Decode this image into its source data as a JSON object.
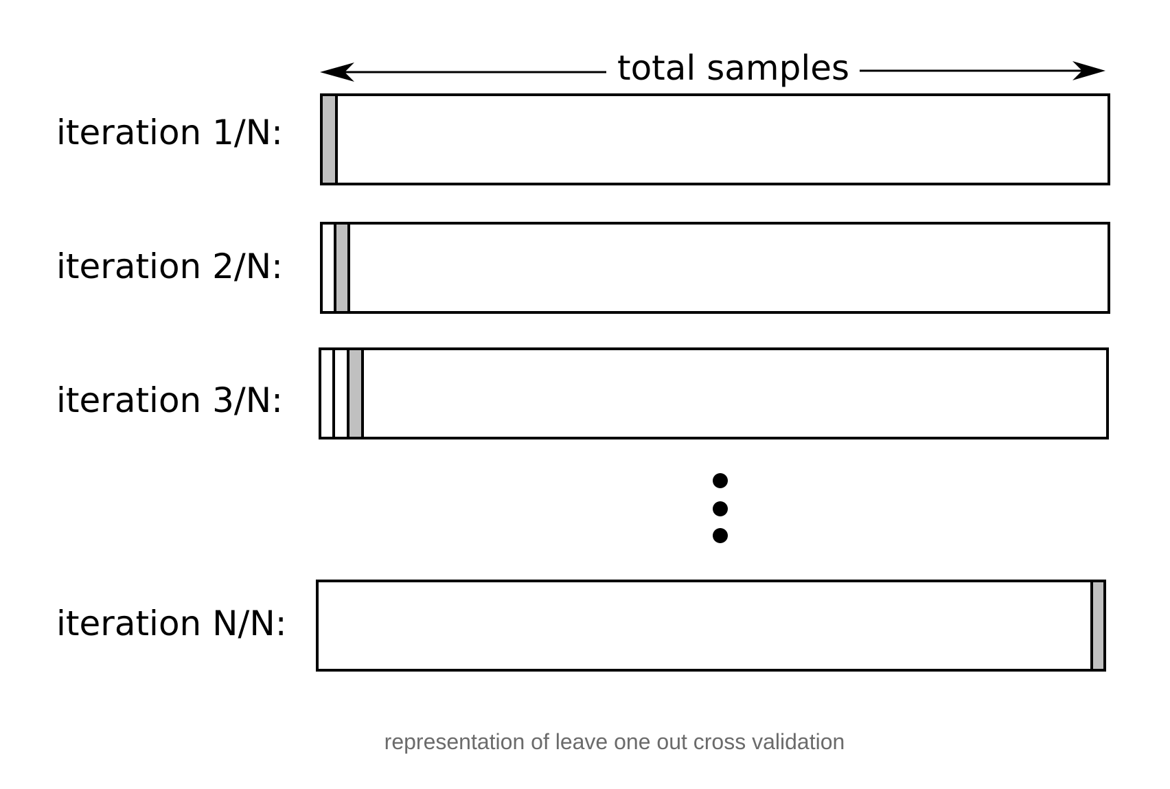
{
  "header": {
    "label": "total samples"
  },
  "iterations": [
    {
      "label": "iteration 1/N:",
      "held_out_index": 1
    },
    {
      "label": "iteration 2/N:",
      "held_out_index": 2
    },
    {
      "label": "iteration 3/N:",
      "held_out_index": 3
    },
    {
      "label": "iteration N/N:",
      "held_out_index": "N"
    }
  ],
  "ellipsis": "vertical-dots",
  "colors": {
    "held_out_fill": "#c0c0c0",
    "outline": "#000000",
    "caption_text": "#6b6b6b"
  },
  "caption": "representation of leave one out cross validation"
}
